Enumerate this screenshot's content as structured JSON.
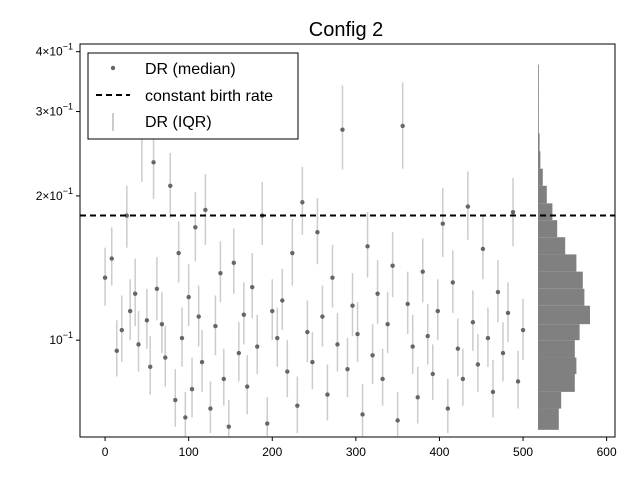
{
  "chart_data": {
    "type": "scatter",
    "title": "Config 2",
    "xlabel": "",
    "ylabel": "",
    "xlim": [
      -30,
      610
    ],
    "ylim": [
      0.0628,
      0.415
    ],
    "yscale": "log",
    "grid": false,
    "legend_position": "top-left",
    "x_ticks": [
      0,
      100,
      200,
      300,
      400,
      500,
      600
    ],
    "x_tick_labels": [
      "0",
      "100",
      "200",
      "300",
      "400",
      "500",
      "600"
    ],
    "y_ticks": [
      0.1,
      0.2,
      0.3,
      0.4
    ],
    "y_tick_labels": [
      {
        "base": "10",
        "exp": "−1"
      },
      {
        "base": "2×10",
        "exp": "−1"
      },
      {
        "base": "3×10",
        "exp": "−1"
      },
      {
        "base": "4×10",
        "exp": "−1"
      }
    ],
    "colors": {
      "points": "#666666",
      "iqr": "#cccccc",
      "line": "#000000",
      "hist": "#808080"
    },
    "legend": [
      {
        "label": "DR (median)",
        "kind": "point"
      },
      {
        "label": "constant birth rate",
        "kind": "dashed-line"
      },
      {
        "label": "DR (IQR)",
        "kind": "error-bar"
      }
    ],
    "constant_birth_rate": 0.182,
    "series": [
      {
        "name": "DR (median)",
        "x": [
          0,
          8,
          14,
          20,
          26,
          30,
          36,
          40,
          44,
          50,
          54,
          58,
          62,
          68,
          72,
          78,
          84,
          88,
          92,
          96,
          100,
          104,
          108,
          112,
          116,
          120,
          126,
          132,
          138,
          142,
          148,
          154,
          160,
          166,
          170,
          176,
          182,
          188,
          194,
          200,
          206,
          212,
          218,
          224,
          230,
          236,
          242,
          248,
          254,
          260,
          266,
          272,
          278,
          284,
          290,
          296,
          302,
          308,
          314,
          320,
          326,
          332,
          338,
          344,
          350,
          356,
          362,
          368,
          374,
          380,
          386,
          392,
          398,
          404,
          410,
          416,
          422,
          428,
          434,
          440,
          446,
          452,
          458,
          464,
          470,
          476,
          482,
          488,
          494,
          500
        ],
        "y": [
          0.135,
          0.148,
          0.095,
          0.105,
          0.182,
          0.115,
          0.125,
          0.098,
          0.272,
          0.11,
          0.088,
          0.235,
          0.128,
          0.108,
          0.092,
          0.21,
          0.075,
          0.152,
          0.101,
          0.069,
          0.123,
          0.079,
          0.172,
          0.112,
          0.09,
          0.187,
          0.072,
          0.107,
          0.138,
          0.083,
          0.066,
          0.145,
          0.094,
          0.113,
          0.08,
          0.129,
          0.097,
          0.182,
          0.067,
          0.115,
          0.101,
          0.121,
          0.086,
          0.152,
          0.073,
          0.194,
          0.104,
          0.09,
          0.168,
          0.112,
          0.077,
          0.135,
          0.098,
          0.275,
          0.087,
          0.118,
          0.103,
          0.07,
          0.157,
          0.093,
          0.125,
          0.083,
          0.108,
          0.143,
          0.068,
          0.28,
          0.119,
          0.097,
          0.076,
          0.139,
          0.102,
          0.085,
          0.115,
          0.175,
          0.072,
          0.132,
          0.096,
          0.083,
          0.19,
          0.109,
          0.089,
          0.155,
          0.101,
          0.078,
          0.126,
          0.094,
          0.114,
          0.185,
          0.082,
          0.105
        ],
        "iqr_low": [
          0.118,
          0.13,
          0.084,
          0.09,
          0.156,
          0.1,
          0.107,
          0.086,
          0.214,
          0.096,
          0.077,
          0.197,
          0.11,
          0.094,
          0.08,
          0.18,
          0.066,
          0.132,
          0.088,
          0.063,
          0.107,
          0.069,
          0.146,
          0.097,
          0.078,
          0.158,
          0.064,
          0.093,
          0.12,
          0.073,
          0.063,
          0.125,
          0.082,
          0.098,
          0.07,
          0.111,
          0.085,
          0.158,
          0.063,
          0.1,
          0.088,
          0.105,
          0.076,
          0.13,
          0.064,
          0.166,
          0.09,
          0.079,
          0.144,
          0.097,
          0.068,
          0.117,
          0.086,
          0.227,
          0.076,
          0.102,
          0.09,
          0.063,
          0.135,
          0.081,
          0.108,
          0.073,
          0.094,
          0.123,
          0.063,
          0.228,
          0.103,
          0.085,
          0.067,
          0.12,
          0.089,
          0.075,
          0.1,
          0.149,
          0.064,
          0.114,
          0.084,
          0.073,
          0.162,
          0.095,
          0.078,
          0.134,
          0.088,
          0.069,
          0.109,
          0.082,
          0.099,
          0.157,
          0.072,
          0.091
        ],
        "iqr_high": [
          0.156,
          0.172,
          0.11,
          0.124,
          0.21,
          0.134,
          0.148,
          0.115,
          0.33,
          0.128,
          0.102,
          0.28,
          0.149,
          0.126,
          0.107,
          0.246,
          0.087,
          0.177,
          0.117,
          0.078,
          0.144,
          0.092,
          0.204,
          0.13,
          0.105,
          0.222,
          0.082,
          0.124,
          0.161,
          0.096,
          0.075,
          0.171,
          0.109,
          0.132,
          0.093,
          0.152,
          0.113,
          0.214,
          0.076,
          0.134,
          0.117,
          0.141,
          0.1,
          0.179,
          0.084,
          0.23,
          0.121,
          0.104,
          0.198,
          0.13,
          0.089,
          0.158,
          0.114,
          0.34,
          0.101,
          0.138,
          0.12,
          0.081,
          0.185,
          0.108,
          0.147,
          0.096,
          0.126,
          0.168,
          0.078,
          0.345,
          0.139,
          0.113,
          0.088,
          0.163,
          0.119,
          0.098,
          0.134,
          0.208,
          0.083,
          0.154,
          0.111,
          0.096,
          0.225,
          0.127,
          0.103,
          0.182,
          0.117,
          0.091,
          0.147,
          0.109,
          0.132,
          0.218,
          0.095,
          0.122
        ]
      }
    ],
    "marginal_histogram": {
      "orientation": "horizontal",
      "bins": [
        {
          "lo": 0.065,
          "hi": 0.072,
          "count": 26
        },
        {
          "lo": 0.072,
          "hi": 0.078,
          "count": 29
        },
        {
          "lo": 0.078,
          "hi": 0.085,
          "count": 46
        },
        {
          "lo": 0.085,
          "hi": 0.092,
          "count": 48
        },
        {
          "lo": 0.092,
          "hi": 0.1,
          "count": 46
        },
        {
          "lo": 0.1,
          "hi": 0.108,
          "count": 52
        },
        {
          "lo": 0.108,
          "hi": 0.118,
          "count": 65
        },
        {
          "lo": 0.118,
          "hi": 0.128,
          "count": 58
        },
        {
          "lo": 0.128,
          "hi": 0.139,
          "count": 56
        },
        {
          "lo": 0.139,
          "hi": 0.151,
          "count": 48
        },
        {
          "lo": 0.151,
          "hi": 0.164,
          "count": 34
        },
        {
          "lo": 0.164,
          "hi": 0.178,
          "count": 24
        },
        {
          "lo": 0.178,
          "hi": 0.193,
          "count": 18
        },
        {
          "lo": 0.193,
          "hi": 0.21,
          "count": 11
        },
        {
          "lo": 0.21,
          "hi": 0.228,
          "count": 6
        },
        {
          "lo": 0.228,
          "hi": 0.248,
          "count": 3
        },
        {
          "lo": 0.248,
          "hi": 0.27,
          "count": 2
        },
        {
          "lo": 0.27,
          "hi": 0.293,
          "count": 1
        },
        {
          "lo": 0.293,
          "hi": 0.318,
          "count": 1
        },
        {
          "lo": 0.318,
          "hi": 0.346,
          "count": 1
        },
        {
          "lo": 0.346,
          "hi": 0.376,
          "count": 1
        }
      ]
    }
  }
}
